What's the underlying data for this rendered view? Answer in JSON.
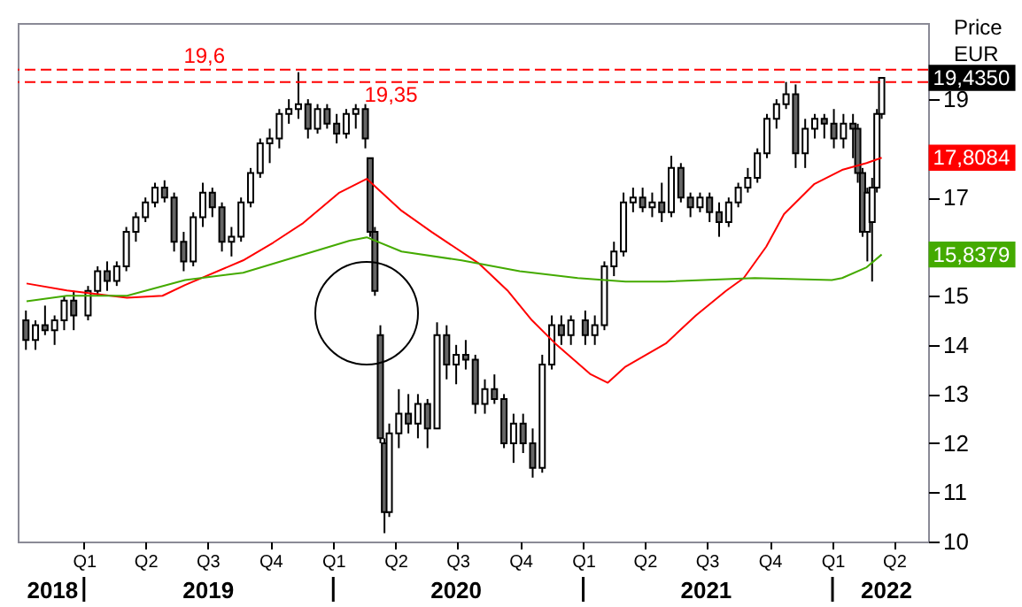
{
  "chart_data": {
    "type": "candlestick",
    "color": "#000000",
    "ylabel": "Price\nEUR",
    "xlim": [
      "2018-09-26",
      "2022-05-21"
    ],
    "ylim": [
      10,
      20.55
    ],
    "yticks": [
      10,
      11,
      12,
      13,
      14,
      15,
      {
        "value": 16,
        "label": null
      },
      17,
      {
        "value": 18,
        "label": null
      },
      19
    ],
    "xticks": [
      {
        "value": "2019-01-01",
        "label": "Q1"
      },
      {
        "value": "2019-04-01",
        "label": "Q2"
      },
      {
        "value": "2019-07-01",
        "label": "Q3"
      },
      {
        "value": "2019-10-01",
        "label": "Q4"
      },
      {
        "value": "2020-01-01",
        "label": "Q1"
      },
      {
        "value": "2020-04-01",
        "label": "Q2"
      },
      {
        "value": "2020-07-01",
        "label": "Q3"
      },
      {
        "value": "2020-10-01",
        "label": "Q4"
      },
      {
        "value": "2021-01-01",
        "label": "Q1"
      },
      {
        "value": "2021-04-01",
        "label": "Q2"
      },
      {
        "value": "2021-07-01",
        "label": "Q3"
      },
      {
        "value": "2021-10-01",
        "label": "Q4"
      },
      {
        "value": "2022-01-01",
        "label": "Q1"
      },
      {
        "value": "2022-04-01",
        "label": "Q2"
      }
    ],
    "x2lim": [
      "2018-09-26",
      "2022-05-21"
    ],
    "x2ticks": [
      {
        "value": "2018-11-16",
        "label": "2018"
      },
      {
        "value": "2019-01-01",
        "label": null
      },
      {
        "value": "2019-07-02",
        "label": "2019"
      },
      {
        "value": "2020-01-01",
        "label": null
      },
      {
        "value": "2020-06-29",
        "label": "2020"
      },
      {
        "value": "2021-01-01",
        "label": null
      },
      {
        "value": "2021-06-30",
        "label": "2021"
      },
      {
        "value": "2022-01-01",
        "label": null
      },
      {
        "value": "2022-03-21",
        "label": "2022"
      }
    ],
    "x": [
      "2018-10-08",
      "2018-10-22",
      "2018-11-05",
      "2018-11-19",
      "2018-12-03",
      "2018-12-17",
      "2019-01-07",
      "2019-01-21",
      "2019-02-04",
      "2019-02-18",
      "2019-03-04",
      "2019-03-18",
      "2019-04-01",
      "2019-04-15",
      "2019-04-29",
      "2019-05-13",
      "2019-05-27",
      "2019-06-10",
      "2019-06-24",
      "2019-07-08",
      "2019-07-22",
      "2019-08-05",
      "2019-08-19",
      "2019-09-02",
      "2019-09-16",
      "2019-09-30",
      "2019-10-14",
      "2019-10-28",
      "2019-11-11",
      "2019-11-25",
      "2019-12-09",
      "2019-12-23",
      "2020-01-06",
      "2020-01-20",
      "2020-02-03",
      "2020-02-17",
      "2020-02-24",
      "2020-03-02",
      "2020-03-10",
      "2020-03-16",
      "2020-03-23",
      "2020-04-06",
      "2020-04-20",
      "2020-05-04",
      "2020-05-18",
      "2020-06-01",
      "2020-06-15",
      "2020-06-29",
      "2020-07-13",
      "2020-07-27",
      "2020-08-10",
      "2020-08-24",
      "2020-09-07",
      "2020-09-21",
      "2020-10-05",
      "2020-10-19",
      "2020-11-02",
      "2020-11-16",
      "2020-11-30",
      "2020-12-14",
      "2021-01-04",
      "2021-01-18",
      "2021-02-01",
      "2021-02-15",
      "2021-03-01",
      "2021-03-15",
      "2021-03-29",
      "2021-04-12",
      "2021-04-26",
      "2021-05-10",
      "2021-05-24",
      "2021-06-07",
      "2021-06-21",
      "2021-07-05",
      "2021-07-19",
      "2021-08-02",
      "2021-08-16",
      "2021-08-30",
      "2021-09-13",
      "2021-09-27",
      "2021-10-11",
      "2021-10-25",
      "2021-11-08",
      "2021-11-22",
      "2021-12-06",
      "2021-12-20",
      "2022-01-03",
      "2022-01-17",
      "2022-01-31",
      "2022-02-07",
      "2022-02-14",
      "2022-02-21",
      "2022-02-28",
      "2022-03-07",
      "2022-03-14"
    ],
    "ohlc": [
      [
        14.5,
        14.7,
        13.9,
        14.1
      ],
      [
        14.1,
        14.5,
        13.9,
        14.4
      ],
      [
        14.4,
        14.8,
        14.2,
        14.3
      ],
      [
        14.3,
        14.6,
        14.0,
        14.5
      ],
      [
        14.5,
        15.0,
        14.3,
        14.9
      ],
      [
        14.9,
        15.1,
        14.3,
        14.6
      ],
      [
        14.6,
        15.2,
        14.5,
        15.1
      ],
      [
        15.1,
        15.6,
        15.0,
        15.5
      ],
      [
        15.5,
        15.7,
        15.1,
        15.3
      ],
      [
        15.3,
        15.7,
        15.2,
        15.6
      ],
      [
        15.6,
        16.4,
        15.5,
        16.3
      ],
      [
        16.3,
        16.7,
        16.1,
        16.6
      ],
      [
        16.6,
        17.0,
        16.5,
        16.9
      ],
      [
        16.9,
        17.3,
        16.8,
        17.2
      ],
      [
        17.2,
        17.35,
        16.9,
        17.0
      ],
      [
        17.0,
        17.1,
        15.9,
        16.1
      ],
      [
        16.1,
        16.3,
        15.5,
        15.7
      ],
      [
        15.7,
        16.7,
        15.6,
        16.6
      ],
      [
        16.6,
        17.3,
        16.4,
        17.1
      ],
      [
        17.1,
        17.2,
        16.6,
        16.8
      ],
      [
        16.8,
        16.9,
        15.9,
        16.1
      ],
      [
        16.1,
        16.4,
        15.8,
        16.2
      ],
      [
        16.2,
        17.0,
        16.1,
        16.9
      ],
      [
        16.9,
        17.6,
        16.8,
        17.5
      ],
      [
        17.5,
        18.2,
        17.4,
        18.1
      ],
      [
        18.1,
        18.4,
        17.7,
        18.2
      ],
      [
        18.2,
        18.8,
        18.0,
        18.7
      ],
      [
        18.7,
        19.0,
        18.5,
        18.8
      ],
      [
        18.8,
        19.55,
        18.6,
        18.9
      ],
      [
        18.9,
        19.0,
        18.2,
        18.4
      ],
      [
        18.4,
        18.9,
        18.3,
        18.8
      ],
      [
        18.8,
        18.9,
        18.4,
        18.5
      ],
      [
        18.5,
        18.7,
        18.1,
        18.3
      ],
      [
        18.3,
        18.8,
        18.2,
        18.7
      ],
      [
        18.7,
        18.9,
        18.4,
        18.8
      ],
      [
        18.8,
        18.9,
        18.0,
        18.2
      ],
      [
        17.8,
        17.8,
        16.2,
        16.3
      ],
      [
        16.3,
        16.4,
        15.0,
        15.1
      ],
      [
        14.2,
        14.4,
        12.0,
        12.1
      ],
      [
        12.0,
        12.1,
        10.17,
        10.6
      ],
      [
        10.6,
        12.4,
        10.5,
        12.2
      ],
      [
        12.2,
        13.1,
        11.9,
        12.6
      ],
      [
        12.6,
        13.0,
        12.2,
        12.4
      ],
      [
        12.4,
        13.0,
        12.1,
        12.8
      ],
      [
        12.8,
        12.9,
        11.9,
        12.3
      ],
      [
        12.3,
        14.46,
        12.3,
        14.2
      ],
      [
        14.2,
        14.4,
        13.3,
        13.6
      ],
      [
        13.6,
        14.0,
        13.2,
        13.8
      ],
      [
        13.8,
        14.1,
        13.5,
        13.7
      ],
      [
        13.7,
        13.8,
        12.6,
        12.8
      ],
      [
        12.8,
        13.3,
        12.6,
        13.1
      ],
      [
        13.1,
        13.4,
        12.8,
        12.9
      ],
      [
        12.9,
        13.0,
        11.9,
        12.0
      ],
      [
        12.0,
        12.6,
        11.6,
        12.4
      ],
      [
        12.4,
        12.6,
        11.8,
        12.0
      ],
      [
        12.0,
        12.3,
        11.3,
        11.5
      ],
      [
        11.5,
        13.8,
        11.4,
        13.6
      ],
      [
        13.6,
        14.6,
        13.5,
        14.4
      ],
      [
        14.4,
        14.6,
        14.0,
        14.2
      ],
      [
        14.2,
        14.6,
        14.0,
        14.5
      ],
      [
        14.5,
        14.7,
        14.0,
        14.2
      ],
      [
        14.2,
        14.6,
        14.0,
        14.4
      ],
      [
        14.4,
        15.7,
        14.3,
        15.6
      ],
      [
        15.6,
        16.1,
        15.4,
        15.9
      ],
      [
        15.9,
        17.1,
        15.8,
        16.9
      ],
      [
        16.9,
        17.2,
        16.7,
        17.0
      ],
      [
        17.0,
        17.2,
        16.7,
        16.8
      ],
      [
        16.8,
        17.1,
        16.6,
        16.9
      ],
      [
        16.9,
        17.3,
        16.5,
        16.7
      ],
      [
        16.7,
        17.85,
        16.6,
        17.6
      ],
      [
        17.6,
        17.7,
        16.9,
        17.0
      ],
      [
        17.0,
        17.1,
        16.6,
        16.8
      ],
      [
        16.8,
        17.1,
        16.7,
        17.0
      ],
      [
        17.0,
        17.1,
        16.5,
        16.7
      ],
      [
        16.7,
        16.9,
        16.2,
        16.5
      ],
      [
        16.5,
        17.0,
        16.4,
        16.9
      ],
      [
        16.9,
        17.3,
        16.8,
        17.2
      ],
      [
        17.2,
        17.6,
        17.1,
        17.4
      ],
      [
        17.4,
        18.0,
        17.3,
        17.9
      ],
      [
        17.9,
        18.7,
        17.8,
        18.6
      ],
      [
        18.6,
        19.0,
        18.4,
        18.9
      ],
      [
        18.9,
        19.35,
        18.8,
        19.1
      ],
      [
        19.1,
        19.3,
        17.6,
        17.9
      ],
      [
        17.9,
        18.6,
        17.6,
        18.4
      ],
      [
        18.4,
        18.7,
        18.2,
        18.6
      ],
      [
        18.6,
        18.7,
        18.2,
        18.5
      ],
      [
        18.5,
        18.8,
        18.0,
        18.2
      ],
      [
        18.2,
        18.7,
        18.0,
        18.5
      ],
      [
        18.5,
        18.7,
        17.8,
        18.4
      ],
      [
        18.4,
        18.5,
        17.3,
        17.5
      ],
      [
        17.5,
        17.6,
        16.2,
        16.3
      ],
      [
        16.3,
        17.2,
        15.7,
        17.1
      ],
      [
        16.5,
        17.4,
        15.29,
        17.2
      ],
      [
        17.2,
        18.8,
        17.1,
        18.7
      ],
      [
        18.7,
        19.45,
        18.6,
        19.435
      ]
    ],
    "series": [
      {
        "type": "line",
        "color": "#ff0000",
        "x": [
          "2018-10-09",
          "2018-12-07",
          "2019-03-05",
          "2019-04-26",
          "2019-05-29",
          "2019-08-22",
          "2019-10-05",
          "2019-11-18",
          "2020-01-09",
          "2020-02-19",
          "2020-04-10",
          "2020-05-24",
          "2020-08-02",
          "2020-09-12",
          "2020-10-18",
          "2020-11-21",
          "2021-01-11",
          "2021-02-06",
          "2021-03-04",
          "2021-05-02",
          "2021-06-15",
          "2021-07-29",
          "2021-08-24",
          "2021-09-26",
          "2021-10-22",
          "2021-12-05",
          "2022-01-15",
          "2022-02-20",
          "2022-03-14"
        ],
        "values": [
          15.25,
          15.11,
          14.96,
          15.0,
          15.22,
          15.72,
          16.08,
          16.48,
          17.09,
          17.38,
          16.73,
          16.3,
          15.65,
          15.11,
          14.5,
          14.03,
          13.41,
          13.23,
          13.56,
          14.03,
          14.6,
          15.1,
          15.36,
          16.0,
          16.66,
          17.27,
          17.56,
          17.7,
          17.81
        ]
      },
      {
        "type": "line",
        "color": "#44aa00",
        "x": [
          "2018-10-09",
          "2018-12-07",
          "2019-03-05",
          "2019-05-29",
          "2019-08-22",
          "2019-10-31",
          "2020-01-25",
          "2020-02-19",
          "2020-04-10",
          "2020-07-07",
          "2020-09-30",
          "2020-12-24",
          "2021-03-04",
          "2021-05-02",
          "2021-09-09",
          "2021-12-31",
          "2022-01-15",
          "2022-02-20",
          "2022-03-14"
        ],
        "values": [
          14.89,
          15.0,
          15.0,
          15.32,
          15.47,
          15.76,
          16.12,
          16.19,
          15.9,
          15.72,
          15.5,
          15.36,
          15.29,
          15.29,
          15.36,
          15.32,
          15.36,
          15.58,
          15.84
        ]
      }
    ],
    "ref_lines": [
      {
        "axis": "y",
        "value": 19.6,
        "label": "19,6",
        "color": "#ff0000",
        "line_style": "dashed"
      },
      {
        "axis": "y",
        "value": 19.35,
        "label": "19,35",
        "color": "#ff0000",
        "line_style": "dashed"
      }
    ],
    "annotations": [
      {
        "text": "19,4350",
        "x": "2022-03-14",
        "y": 19.435
      },
      {
        "text": "17,8084",
        "x": "2022-03-14",
        "y": 17.8084
      },
      {
        "text": "15,8379",
        "x": "2022-03-14",
        "y": 15.84
      }
    ]
  }
}
